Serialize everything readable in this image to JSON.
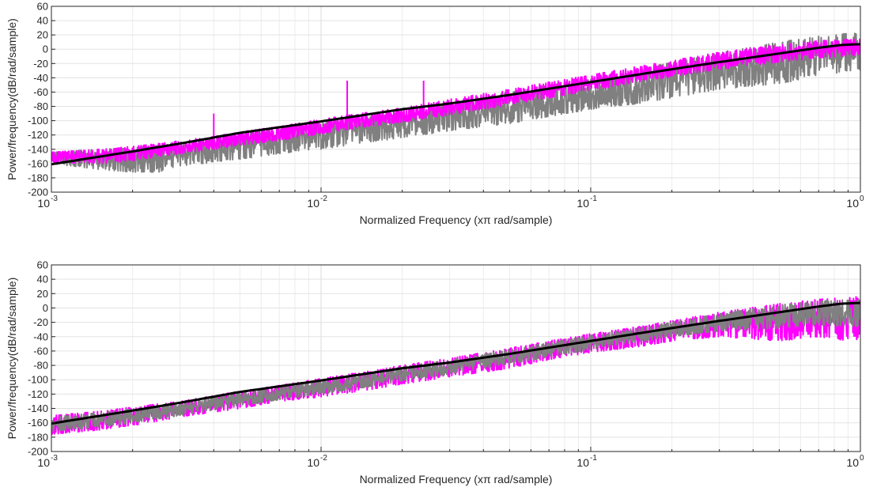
{
  "chart_data": [
    {
      "type": "line",
      "xscale": "log",
      "xlim": [
        0.001,
        1
      ],
      "ylim": [
        -200,
        60
      ],
      "xlabel": "Normalized Frequency (xπ rad/sample)",
      "ylabel": "Power/frequency(dB/rad/sample)",
      "grid": true,
      "xticks": [
        {
          "base": "10",
          "exp": "-3",
          "value": 0.001
        },
        {
          "base": "10",
          "exp": "-2",
          "value": 0.01
        },
        {
          "base": "10",
          "exp": "-1",
          "value": 0.1
        },
        {
          "base": "10",
          "exp": "0",
          "value": 1
        }
      ],
      "yticks": [
        "60",
        "40",
        "20",
        "0",
        "-20",
        "-40",
        "-60",
        "-80",
        "-100",
        "-120",
        "-140",
        "-160",
        "-180",
        "-200"
      ],
      "series": [
        {
          "color": "#808080",
          "x": [
            0.001,
            0.0015,
            0.002,
            0.0025,
            0.003,
            0.004,
            0.005,
            0.007,
            0.01,
            0.015,
            0.02,
            0.03,
            0.05,
            0.07,
            0.1,
            0.15,
            0.2,
            0.3,
            0.5,
            0.7,
            1.0
          ],
          "y_upper": [
            -144,
            -140,
            -138,
            -134,
            -130,
            -124,
            -119,
            -112,
            -102,
            -94,
            -88,
            -76,
            -60,
            -50,
            -42,
            -28,
            -18,
            -5,
            10,
            18,
            24
          ],
          "y_lower": [
            -160,
            -168,
            -172,
            -172,
            -164,
            -158,
            -154,
            -146,
            -140,
            -130,
            -124,
            -114,
            -104,
            -94,
            -84,
            -76,
            -68,
            -56,
            -48,
            -38,
            -30
          ]
        },
        {
          "color": "#ff00ff",
          "x": [
            0.001,
            0.0015,
            0.002,
            0.0025,
            0.003,
            0.004,
            0.005,
            0.007,
            0.01,
            0.015,
            0.02,
            0.03,
            0.05,
            0.07,
            0.1,
            0.15,
            0.2,
            0.3,
            0.5,
            0.7,
            1.0
          ],
          "y_upper": [
            -144,
            -140,
            -136,
            -132,
            -128,
            -122,
            -116,
            -108,
            -98,
            -88,
            -82,
            -70,
            -56,
            -46,
            -36,
            -24,
            -16,
            -4,
            6,
            12,
            14
          ],
          "y_lower": [
            -158,
            -160,
            -156,
            -150,
            -146,
            -140,
            -134,
            -128,
            -118,
            -108,
            -102,
            -92,
            -78,
            -68,
            -58,
            -46,
            -38,
            -28,
            -18,
            -12,
            -8
          ],
          "spikes": [
            {
              "x": 0.004,
              "y": -90
            },
            {
              "x": 0.0125,
              "y": -44
            },
            {
              "x": 0.024,
              "y": -44
            }
          ]
        },
        {
          "color": "#000000",
          "x": [
            0.001,
            0.002,
            0.003,
            0.005,
            0.01,
            0.02,
            0.03,
            0.05,
            0.1,
            0.2,
            0.3,
            0.5,
            0.7,
            0.85,
            1.0
          ],
          "y": [
            -161,
            -143,
            -132,
            -117,
            -101,
            -84,
            -76,
            -64,
            -46,
            -28,
            -18,
            -6,
            2,
            6,
            7
          ]
        }
      ]
    },
    {
      "type": "line",
      "xscale": "log",
      "xlim": [
        0.001,
        1
      ],
      "ylim": [
        -200,
        60
      ],
      "xlabel": "Normalized Frequency (xπ rad/sample)",
      "ylabel": "Power/frequency(dB/rad/sample)",
      "grid": true,
      "xticks": [
        {
          "base": "10",
          "exp": "-3",
          "value": 0.001
        },
        {
          "base": "10",
          "exp": "-2",
          "value": 0.01
        },
        {
          "base": "10",
          "exp": "-1",
          "value": 0.1
        },
        {
          "base": "10",
          "exp": "0",
          "value": 1
        }
      ],
      "yticks": [
        "60",
        "40",
        "20",
        "0",
        "-20",
        "-40",
        "-60",
        "-80",
        "-100",
        "-120",
        "-140",
        "-160",
        "-180",
        "-200"
      ],
      "series": [
        {
          "color": "#ff00ff",
          "x": [
            0.001,
            0.0015,
            0.002,
            0.003,
            0.005,
            0.007,
            0.01,
            0.015,
            0.02,
            0.03,
            0.05,
            0.07,
            0.1,
            0.15,
            0.2,
            0.3,
            0.5,
            0.7,
            1.0
          ],
          "y_upper": [
            -150,
            -144,
            -138,
            -130,
            -116,
            -108,
            -98,
            -88,
            -80,
            -70,
            -56,
            -46,
            -36,
            -26,
            -18,
            -6,
            6,
            12,
            16
          ],
          "y_lower": [
            -176,
            -170,
            -164,
            -152,
            -140,
            -130,
            -124,
            -114,
            -106,
            -96,
            -84,
            -72,
            -62,
            -54,
            -46,
            -40,
            -46,
            -40,
            -48
          ]
        },
        {
          "color": "#808080",
          "x": [
            0.001,
            0.0015,
            0.002,
            0.003,
            0.005,
            0.007,
            0.01,
            0.015,
            0.02,
            0.03,
            0.05,
            0.07,
            0.1,
            0.15,
            0.2,
            0.3,
            0.5,
            0.7,
            1.0
          ],
          "y_upper": [
            -152,
            -146,
            -140,
            -132,
            -118,
            -110,
            -100,
            -90,
            -82,
            -72,
            -58,
            -48,
            -38,
            -28,
            -20,
            -8,
            4,
            10,
            12
          ],
          "y_lower": [
            -172,
            -166,
            -160,
            -150,
            -136,
            -128,
            -120,
            -110,
            -102,
            -92,
            -78,
            -68,
            -58,
            -48,
            -40,
            -32,
            -28,
            -24,
            -26
          ]
        },
        {
          "color": "#000000",
          "x": [
            0.001,
            0.002,
            0.003,
            0.005,
            0.01,
            0.02,
            0.03,
            0.05,
            0.1,
            0.2,
            0.3,
            0.5,
            0.7,
            0.85,
            1.0
          ],
          "y": [
            -161,
            -143,
            -132,
            -117,
            -101,
            -84,
            -76,
            -64,
            -46,
            -28,
            -18,
            -6,
            2,
            6,
            7
          ]
        }
      ]
    }
  ]
}
